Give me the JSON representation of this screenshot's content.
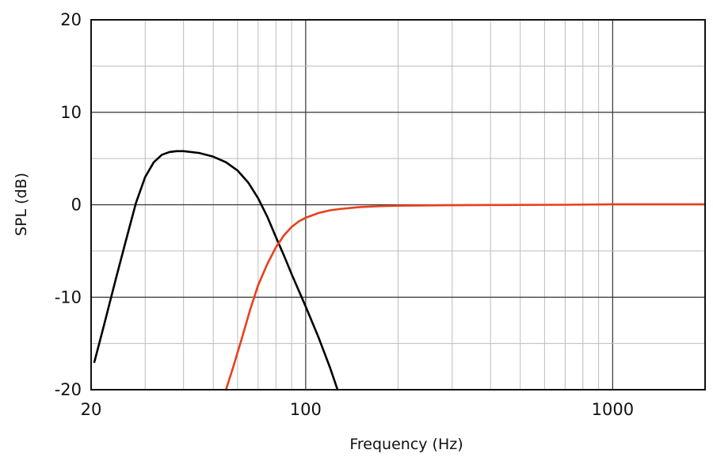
{
  "chart_data": {
    "type": "line",
    "title": "",
    "xlabel": "Frequency (Hz)",
    "ylabel": "SPL (dB)",
    "xscale": "log",
    "xlim": [
      20,
      2000
    ],
    "ylim": [
      -20,
      20
    ],
    "xticks": [
      {
        "value": 20,
        "label": "20"
      },
      {
        "value": 100,
        "label": "100"
      },
      {
        "value": 1000,
        "label": "1000"
      }
    ],
    "yticks": [
      {
        "value": 20,
        "label": "20"
      },
      {
        "value": 10,
        "label": "10"
      },
      {
        "value": 0,
        "label": "0"
      },
      {
        "value": -10,
        "label": "-10"
      },
      {
        "value": -20,
        "label": "-20"
      }
    ],
    "grid": true,
    "series": [
      {
        "color": "#000000",
        "x": [
          20.5,
          22,
          24,
          26,
          28,
          30,
          32,
          34,
          36,
          38,
          40,
          45,
          50,
          55,
          60,
          65,
          70,
          75,
          80,
          85,
          90,
          95,
          100,
          110,
          120,
          127
        ],
        "y": [
          -17,
          -13.1,
          -8.2,
          -3.8,
          0.2,
          3.0,
          4.6,
          5.4,
          5.7,
          5.8,
          5.8,
          5.6,
          5.2,
          4.6,
          3.7,
          2.4,
          0.7,
          -1.3,
          -3.5,
          -5.5,
          -7.5,
          -9.3,
          -11.0,
          -14.3,
          -17.6,
          -20
        ]
      },
      {
        "color": "#e8401c",
        "x": [
          55,
          58,
          62,
          66,
          70,
          75,
          80,
          85,
          90,
          95,
          100,
          110,
          120,
          130,
          150,
          175,
          200,
          250,
          300,
          400,
          500,
          700,
          1000,
          1500,
          2000
        ],
        "y": [
          -20,
          -17.6,
          -14.4,
          -11.3,
          -8.7,
          -6.4,
          -4.6,
          -3.3,
          -2.4,
          -1.8,
          -1.4,
          -0.9,
          -0.6,
          -0.45,
          -0.25,
          -0.15,
          -0.1,
          -0.07,
          -0.05,
          -0.03,
          -0.02,
          0.0,
          0.05,
          0.05,
          0.05
        ]
      }
    ]
  }
}
